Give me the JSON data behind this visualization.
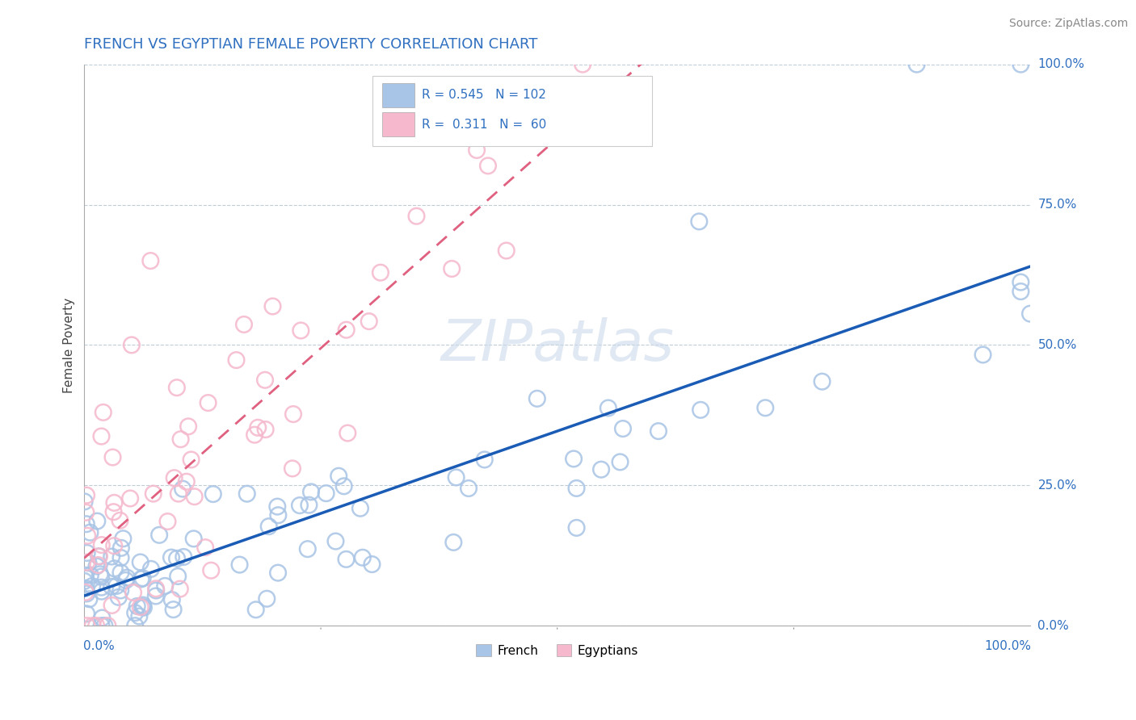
{
  "title": "FRENCH VS EGYPTIAN FEMALE POVERTY CORRELATION CHART",
  "source": "Source: ZipAtlas.com",
  "ylabel": "Female Poverty",
  "watermark": "ZIPatlas",
  "french_R": 0.545,
  "french_N": 102,
  "egyptian_R": 0.311,
  "egyptian_N": 60,
  "french_color": "#a8c4e6",
  "french_line_color": "#1a5cb5",
  "egyptian_color": "#f5b8cc",
  "egyptian_line_color": "#e06080",
  "title_color": "#3070c0",
  "axis_label_color": "#3070c0",
  "legend_R_N_color": "#3070c0",
  "legend_label_color": "#222222",
  "background_color": "#ffffff",
  "grid_color": "#c0ccd8",
  "title_fontsize": 13,
  "source_fontsize": 10,
  "axis_fontsize": 11,
  "legend_fontsize": 11,
  "watermark_fontsize": 52
}
